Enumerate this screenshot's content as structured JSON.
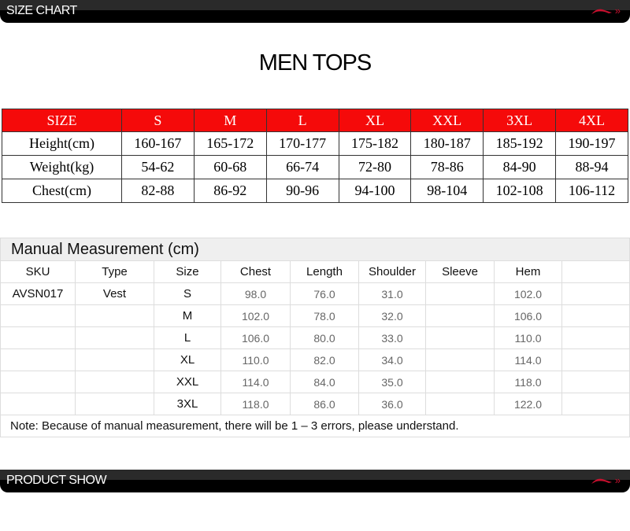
{
  "headers": {
    "size_chart": "SIZE CHART",
    "product_show": "PRODUCT SHOW"
  },
  "title": "MEN TOPS",
  "colors": {
    "header_red": "#f50a0a",
    "logo_red": "#c8102e"
  },
  "size_table": {
    "header": [
      "SIZE",
      "S",
      "M",
      "L",
      "XL",
      "XXL",
      "3XL",
      "4XL"
    ],
    "rows": [
      [
        "Height(cm)",
        "160-167",
        "165-172",
        "170-177",
        "175-182",
        "180-187",
        "185-192",
        "190-197"
      ],
      [
        "Weight(kg)",
        "54-62",
        "60-68",
        "66-74",
        "72-80",
        "78-86",
        "84-90",
        "88-94"
      ],
      [
        "Chest(cm)",
        "82-88",
        "86-92",
        "90-96",
        "94-100",
        "98-104",
        "102-108",
        "106-112"
      ]
    ]
  },
  "manual": {
    "title": "Manual Measurement (cm)",
    "columns": [
      "SKU",
      "Type",
      "Size",
      "Chest",
      "Length",
      "Shoulder",
      "Sleeve",
      "Hem",
      ""
    ],
    "rows": [
      [
        "AVSN017",
        "Vest",
        "S",
        "98.0",
        "76.0",
        "31.0",
        "",
        "102.0",
        ""
      ],
      [
        "",
        "",
        "M",
        "102.0",
        "78.0",
        "32.0",
        "",
        "106.0",
        ""
      ],
      [
        "",
        "",
        "L",
        "106.0",
        "80.0",
        "33.0",
        "",
        "110.0",
        ""
      ],
      [
        "",
        "",
        "XL",
        "110.0",
        "82.0",
        "34.0",
        "",
        "114.0",
        ""
      ],
      [
        "",
        "",
        "XXL",
        "114.0",
        "84.0",
        "35.0",
        "",
        "118.0",
        ""
      ],
      [
        "",
        "",
        "3XL",
        "118.0",
        "86.0",
        "36.0",
        "",
        "122.0",
        ""
      ]
    ],
    "note": "Note: Because of manual measurement, there will be 1 – 3 errors, please understand."
  }
}
